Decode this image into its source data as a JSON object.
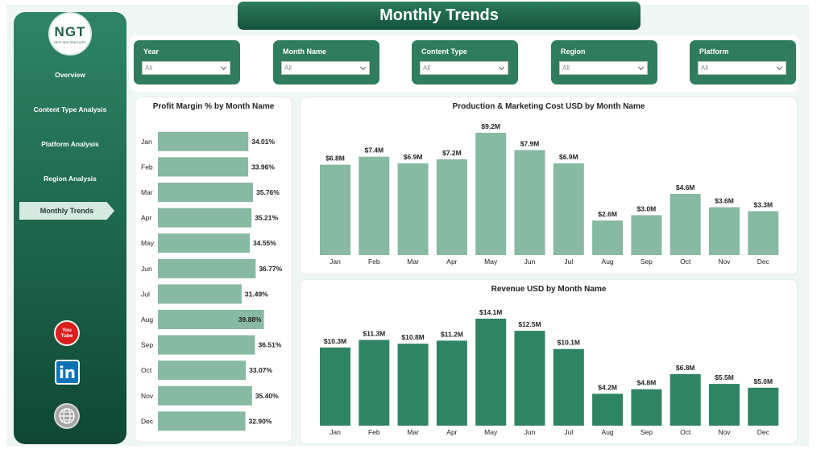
{
  "header": {
    "title": "Monthly Trends"
  },
  "logo": {
    "text": "NGT",
    "subtext": "NEXT GEN TEMPLATES"
  },
  "sidebar": {
    "items": [
      {
        "label": "Overview"
      },
      {
        "label": "Content Type Analysis"
      },
      {
        "label": "Platform Analysis"
      },
      {
        "label": "Region Analysis"
      },
      {
        "label": "Monthly Trends",
        "active": true
      }
    ],
    "social": [
      {
        "icon": "youtube-icon",
        "text": "You Tube"
      },
      {
        "icon": "linkedin-icon",
        "text": "in"
      },
      {
        "icon": "globe-icon"
      }
    ]
  },
  "filters": [
    {
      "label": "Year",
      "value": "All"
    },
    {
      "label": "Month Name",
      "value": "All"
    },
    {
      "label": "Content Type",
      "value": "All"
    },
    {
      "label": "Region",
      "value": "All"
    },
    {
      "label": "Platform",
      "value": "All"
    }
  ],
  "colors": {
    "sidebar_top": "#2f8466",
    "sidebar_bottom": "#0f4733",
    "light_bar": "#88b9a2",
    "dark_bar": "#2f8464",
    "title_bar": "#1f6a4e"
  },
  "chart_data": [
    {
      "type": "bar",
      "orientation": "horizontal",
      "title": "Profit Margin % by Month Name",
      "categories": [
        "Jan",
        "Feb",
        "Mar",
        "Apr",
        "May",
        "Jun",
        "Jul",
        "Aug",
        "Sep",
        "Oct",
        "Nov",
        "Dec"
      ],
      "values": [
        34.01,
        33.96,
        35.76,
        35.21,
        34.55,
        36.77,
        31.49,
        39.88,
        36.51,
        33.07,
        35.4,
        32.9
      ],
      "labels": [
        "34.01%",
        "33.96%",
        "35.76%",
        "35.21%",
        "34.55%",
        "36.77%",
        "31.49%",
        "39.88%",
        "36.51%",
        "33.07%",
        "35.40%",
        "32.90%"
      ],
      "color": "#88b9a2"
    },
    {
      "type": "bar",
      "title": "Production & Marketing Cost USD by Month Name",
      "categories": [
        "Jan",
        "Feb",
        "Mar",
        "Apr",
        "May",
        "Jun",
        "Jul",
        "Aug",
        "Sep",
        "Oct",
        "Nov",
        "Dec"
      ],
      "values": [
        6.8,
        7.4,
        6.9,
        7.2,
        9.2,
        7.9,
        6.9,
        2.6,
        3.0,
        4.6,
        3.6,
        3.3
      ],
      "labels": [
        "$6.8M",
        "$7.4M",
        "$6.9M",
        "$7.2M",
        "$9.2M",
        "$7.9M",
        "$6.9M",
        "$2.6M",
        "$3.0M",
        "$4.6M",
        "$3.6M",
        "$3.3M"
      ],
      "color": "#88b9a2"
    },
    {
      "type": "bar",
      "title": "Revenue USD by Month Name",
      "categories": [
        "Jan",
        "Feb",
        "Mar",
        "Apr",
        "May",
        "Jun",
        "Jul",
        "Aug",
        "Sep",
        "Oct",
        "Nov",
        "Dec"
      ],
      "values": [
        10.3,
        11.3,
        10.8,
        11.2,
        14.1,
        12.5,
        10.1,
        4.2,
        4.8,
        6.8,
        5.5,
        5.0
      ],
      "labels": [
        "$10.3M",
        "$11.3M",
        "$10.8M",
        "$11.2M",
        "$14.1M",
        "$12.5M",
        "$10.1M",
        "$4.2M",
        "$4.8M",
        "$6.8M",
        "$5.5M",
        "$5.0M"
      ],
      "color": "#2f8464"
    }
  ]
}
